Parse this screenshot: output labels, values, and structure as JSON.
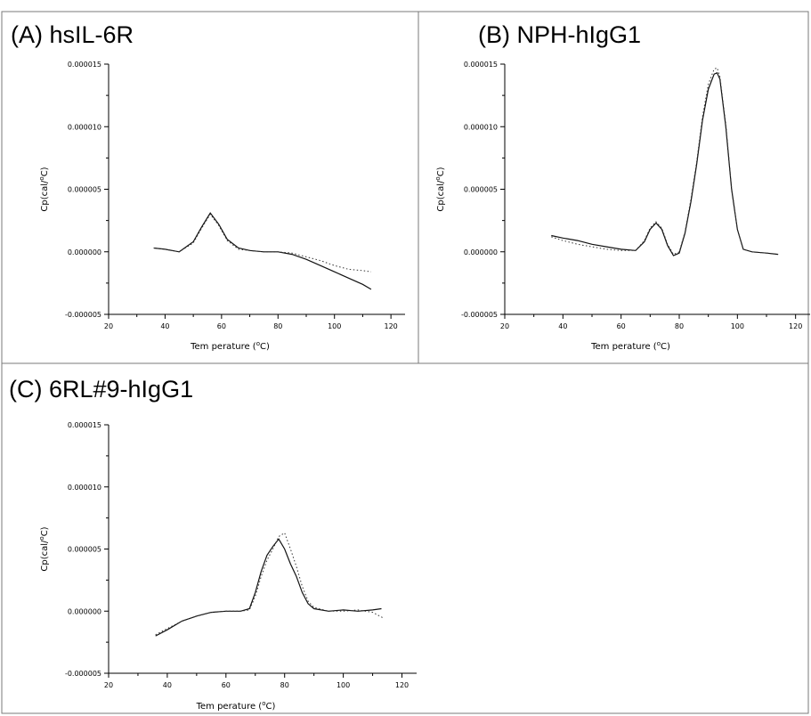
{
  "chart_data": [
    {
      "type": "line",
      "panel_label": "(A) hsIL-6R",
      "xlabel": "Tem perature (°C)",
      "ylabel": "Cp(cal/°C)",
      "xlim": [
        20,
        125
      ],
      "ylim": [
        -5e-06,
        1.5e-05
      ],
      "x_ticks": [
        20,
        40,
        60,
        80,
        100,
        120
      ],
      "y_ticks": [
        "-0.000005",
        "0.000000",
        "0.000005",
        "0.000010",
        "0.000015"
      ],
      "grid": false,
      "series": [
        {
          "style": "solid",
          "x": [
            36,
            40,
            45,
            50,
            53,
            56,
            59,
            62,
            66,
            70,
            75,
            80,
            85,
            90,
            95,
            100,
            105,
            110,
            113
          ],
          "y": [
            3e-07,
            2e-07,
            0.0,
            8e-07,
            2e-06,
            3.1e-06,
            2.2e-06,
            1e-06,
            3e-07,
            1e-07,
            0.0,
            0.0,
            -2e-07,
            -6e-07,
            -1.1e-06,
            -1.6e-06,
            -2.1e-06,
            -2.6e-06,
            -3e-06
          ]
        },
        {
          "style": "dotted",
          "x": [
            36,
            40,
            45,
            50,
            53,
            56,
            59,
            62,
            66,
            70,
            75,
            80,
            85,
            90,
            95,
            100,
            105,
            110,
            113
          ],
          "y": [
            3e-07,
            2e-07,
            0.0,
            7e-07,
            1.9e-06,
            3e-06,
            2.1e-06,
            9e-07,
            2e-07,
            1e-07,
            0.0,
            0.0,
            -1e-07,
            -4e-07,
            -7e-07,
            -1.1e-06,
            -1.4e-06,
            -1.5e-06,
            -1.6e-06
          ]
        }
      ]
    },
    {
      "type": "line",
      "panel_label": "(B) NPH-hIgG1",
      "xlabel": "Tem perature (°C)",
      "ylabel": "Cp(cal/°C)",
      "xlim": [
        20,
        125
      ],
      "ylim": [
        -5e-06,
        1.5e-05
      ],
      "x_ticks": [
        20,
        40,
        60,
        80,
        100,
        120
      ],
      "y_ticks": [
        "-0.000005",
        "0.000000",
        "0.000005",
        "0.000010",
        "0.000015"
      ],
      "grid": false,
      "series": [
        {
          "style": "solid",
          "x": [
            36,
            40,
            45,
            50,
            55,
            60,
            65,
            68,
            70,
            72,
            74,
            76,
            78,
            80,
            82,
            84,
            86,
            88,
            90,
            92,
            93,
            94,
            96,
            98,
            100,
            102,
            105,
            110,
            114
          ],
          "y": [
            1.3e-06,
            1.1e-06,
            9e-07,
            6e-07,
            4e-07,
            2e-07,
            1e-07,
            8e-07,
            1.8e-06,
            2.3e-06,
            1.8e-06,
            5e-07,
            -3e-07,
            -1e-07,
            1.5e-06,
            4e-06,
            7e-06,
            1.05e-05,
            1.3e-05,
            1.42e-05,
            1.43e-05,
            1.38e-05,
            1e-05,
            5e-06,
            1.8e-06,
            2e-07,
            0.0,
            -1e-07,
            -2e-07
          ]
        },
        {
          "style": "dotted",
          "x": [
            36,
            40,
            45,
            50,
            55,
            60,
            65,
            68,
            70,
            72,
            74,
            76,
            78,
            80,
            82,
            84,
            86,
            88,
            90,
            92,
            93,
            94,
            96,
            98,
            100,
            102,
            105,
            110,
            114
          ],
          "y": [
            1.2e-06,
            9e-07,
            6e-07,
            4e-07,
            2e-07,
            1e-07,
            1e-07,
            9e-07,
            1.9e-06,
            2.4e-06,
            1.9e-06,
            6e-07,
            -2e-07,
            0.0,
            1.6e-06,
            4.2e-06,
            7.2e-06,
            1.08e-05,
            1.34e-05,
            1.46e-05,
            1.47e-05,
            1.4e-05,
            1.02e-05,
            5.1e-06,
            1.8e-06,
            2e-07,
            0.0,
            -1e-07,
            -2e-07
          ]
        }
      ]
    },
    {
      "type": "line",
      "panel_label": "(C) 6RL#9-hIgG1",
      "xlabel": "Tem perature (°C)",
      "ylabel": "Cp(cal/°C)",
      "xlim": [
        20,
        125
      ],
      "ylim": [
        -5e-06,
        1.5e-05
      ],
      "x_ticks": [
        20,
        40,
        60,
        80,
        100,
        120
      ],
      "y_ticks": [
        "-0.000005",
        "0.000000",
        "0.000005",
        "0.000010",
        "0.000015"
      ],
      "grid": false,
      "series": [
        {
          "style": "solid",
          "x": [
            36,
            40,
            45,
            50,
            55,
            60,
            65,
            68,
            70,
            72,
            74,
            76,
            78,
            80,
            82,
            84,
            86,
            88,
            90,
            95,
            100,
            105,
            110,
            113
          ],
          "y": [
            -2e-06,
            -1.5e-06,
            -8e-07,
            -4e-07,
            -1e-07,
            0.0,
            0.0,
            2e-07,
            1.5e-06,
            3.2e-06,
            4.5e-06,
            5.2e-06,
            5.8e-06,
            5e-06,
            3.8e-06,
            2.8e-06,
            1.5e-06,
            6e-07,
            2e-07,
            0.0,
            1e-07,
            0.0,
            1e-07,
            2e-07
          ]
        },
        {
          "style": "dotted",
          "x": [
            36,
            40,
            45,
            50,
            55,
            60,
            65,
            68,
            70,
            72,
            74,
            76,
            78,
            80,
            82,
            84,
            86,
            88,
            90,
            95,
            100,
            105,
            110,
            114
          ],
          "y": [
            -1.9e-06,
            -1.4e-06,
            -8e-07,
            -4e-07,
            -1e-07,
            0.0,
            0.0,
            1e-07,
            1.2e-06,
            2.8e-06,
            4.1e-06,
            5e-06,
            6e-06,
            6.3e-06,
            5e-06,
            3.6e-06,
            2e-06,
            8e-07,
            3e-07,
            0.0,
            0.0,
            1e-07,
            -1e-07,
            -6e-07
          ]
        }
      ]
    }
  ]
}
